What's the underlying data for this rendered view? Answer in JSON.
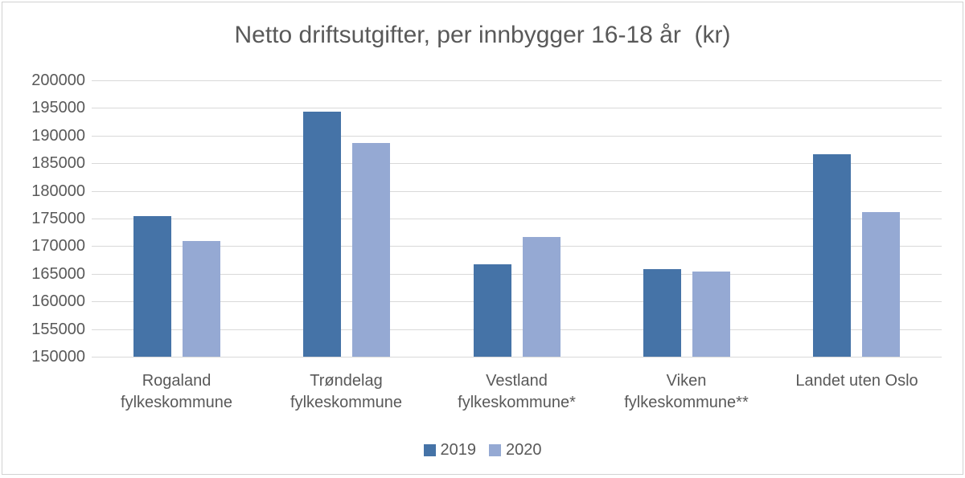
{
  "chart_data": {
    "type": "bar",
    "title": "Netto driftsutgifter, per innbygger 16-18 år  (kr)",
    "categories": [
      "Rogaland fylkeskommune",
      "Trøndelag fylkeskommune",
      "Vestland fylkeskommune*",
      "Viken fylkeskommune**",
      "Landet uten Oslo"
    ],
    "category_lines": [
      [
        "Rogaland",
        "fylkeskommune"
      ],
      [
        "Trøndelag",
        "fylkeskommune"
      ],
      [
        "Vestland",
        "fylkeskommune*"
      ],
      [
        "Viken",
        "fylkeskommune**"
      ],
      [
        "Landet uten Oslo"
      ]
    ],
    "series": [
      {
        "name": "2019",
        "color": "#4573A7",
        "values": [
          175400,
          194300,
          166700,
          165800,
          186700
        ]
      },
      {
        "name": "2020",
        "color": "#95A9D3",
        "values": [
          171000,
          188700,
          171700,
          165400,
          176200
        ]
      }
    ],
    "ylim": [
      150000,
      200000
    ],
    "ytick_step": 5000,
    "ytick_labels": [
      "150000",
      "155000",
      "160000",
      "165000",
      "170000",
      "175000",
      "180000",
      "185000",
      "190000",
      "195000",
      "200000"
    ],
    "grid": true,
    "legend_position": "bottom",
    "legend_labels": [
      "2019",
      "2020"
    ]
  },
  "colors": {
    "text": "#595959",
    "gridline": "#D9D9D9",
    "frame_border": "#D2D2D2",
    "background": "#FFFFFF"
  }
}
